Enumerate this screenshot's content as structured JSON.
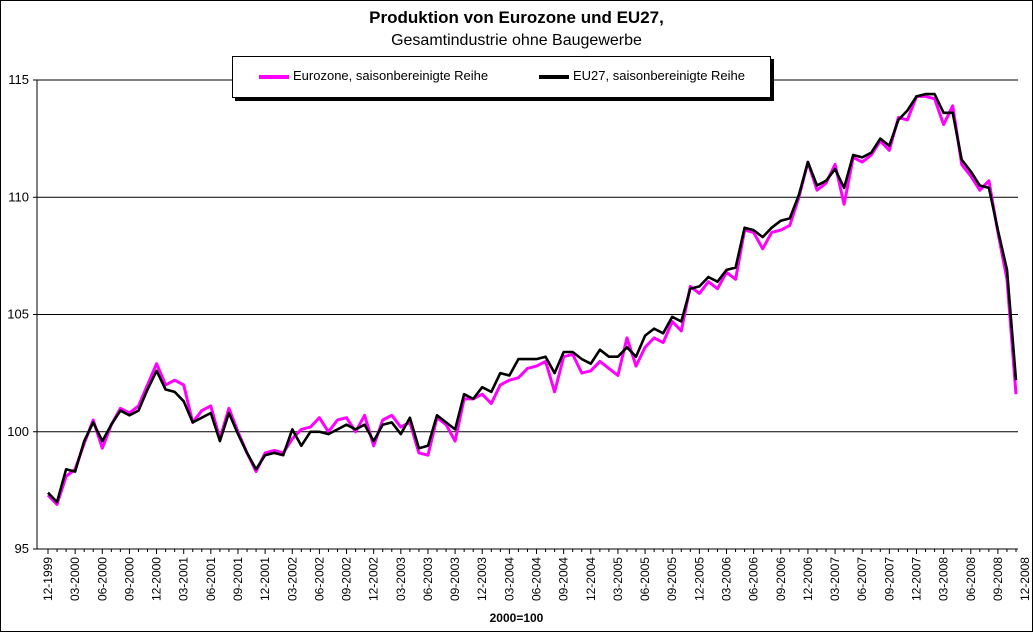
{
  "title": "Produktion von Eurozone und EU27,",
  "subtitle": "Gesamtindustrie ohne Baugewerbe",
  "x_note": "2000=100",
  "chart_data": {
    "type": "line",
    "title": "Produktion von Eurozone und EU27,",
    "subtitle": "Gesamtindustrie ohne Baugewerbe",
    "xlabel": "2000=100",
    "ylabel": "",
    "ylim": [
      95,
      115
    ],
    "yticks": [
      95,
      100,
      105,
      110,
      115
    ],
    "grid": "horizontal",
    "legend_position": "top",
    "x_tick_labels": [
      "12-1999",
      "03-2000",
      "06-2000",
      "09-2000",
      "12-2000",
      "03-2001",
      "06-2001",
      "09-2001",
      "12-2001",
      "03-2002",
      "06-2002",
      "09-2002",
      "12-2002",
      "03-2003",
      "06-2003",
      "09-2003",
      "12-2003",
      "03-2004",
      "06-2004",
      "09-2004",
      "12-2004",
      "03-2005",
      "06-2005",
      "09-2005",
      "12-2005",
      "03-2006",
      "06-2006",
      "09-2006",
      "12-2006",
      "03-2007",
      "06-2007",
      "09-2007",
      "12-2007",
      "03-2008",
      "06-2008",
      "09-2008",
      "12-2008"
    ],
    "series": [
      {
        "name": "Eurozone, saisonbereinigte Reihe",
        "color": "#ff00ff",
        "values": [
          97.3,
          96.9,
          98.1,
          98.4,
          99.5,
          100.5,
          99.3,
          100.3,
          101.0,
          100.8,
          101.1,
          102.0,
          102.9,
          102.0,
          102.2,
          102.0,
          100.4,
          100.9,
          101.1,
          99.7,
          101.0,
          100.0,
          99.1,
          98.3,
          99.1,
          99.2,
          99.1,
          99.7,
          100.1,
          100.2,
          100.6,
          100.0,
          100.5,
          100.6,
          100.0,
          100.7,
          99.4,
          100.5,
          100.7,
          100.2,
          100.4,
          99.1,
          99.0,
          100.6,
          100.3,
          99.6,
          101.4,
          101.4,
          101.6,
          101.2,
          102.0,
          102.2,
          102.3,
          102.7,
          102.8,
          103.0,
          101.7,
          103.2,
          103.3,
          102.5,
          102.6,
          103.0,
          102.7,
          102.4,
          104.0,
          102.8,
          103.6,
          104.0,
          103.8,
          104.7,
          104.3,
          106.2,
          105.9,
          106.4,
          106.1,
          106.8,
          106.5,
          108.6,
          108.5,
          107.8,
          108.5,
          108.6,
          108.8,
          110.0,
          111.5,
          110.3,
          110.6,
          111.4,
          109.7,
          111.7,
          111.5,
          111.8,
          112.4,
          112.0,
          113.4,
          113.3,
          114.3,
          114.3,
          114.2,
          113.1,
          113.9,
          111.4,
          110.9,
          110.3,
          110.7,
          108.5,
          106.5,
          101.6
        ]
      },
      {
        "name": "EU27, saisonbereinigte Reihe",
        "color": "#000000",
        "values": [
          97.4,
          97.0,
          98.4,
          98.3,
          99.6,
          100.4,
          99.6,
          100.3,
          100.9,
          100.7,
          100.9,
          101.8,
          102.6,
          101.8,
          101.7,
          101.3,
          100.4,
          100.6,
          100.8,
          99.6,
          100.8,
          99.9,
          99.1,
          98.4,
          99.0,
          99.1,
          99.0,
          100.1,
          99.4,
          100.0,
          100.0,
          99.9,
          100.1,
          100.3,
          100.1,
          100.3,
          99.6,
          100.3,
          100.4,
          99.9,
          100.6,
          99.3,
          99.4,
          100.7,
          100.4,
          100.1,
          101.6,
          101.4,
          101.9,
          101.7,
          102.5,
          102.4,
          103.1,
          103.1,
          103.1,
          103.2,
          102.5,
          103.4,
          103.4,
          103.1,
          102.9,
          103.5,
          103.2,
          103.2,
          103.6,
          103.2,
          104.1,
          104.4,
          104.2,
          104.9,
          104.7,
          106.1,
          106.2,
          106.6,
          106.4,
          106.9,
          107.0,
          108.7,
          108.6,
          108.3,
          108.7,
          109.0,
          109.1,
          110.1,
          111.5,
          110.5,
          110.7,
          111.2,
          110.4,
          111.8,
          111.7,
          111.9,
          112.5,
          112.2,
          113.3,
          113.7,
          114.3,
          114.4,
          114.4,
          113.6,
          113.6,
          111.6,
          111.1,
          110.5,
          110.4,
          108.6,
          106.9,
          102.2
        ]
      }
    ]
  }
}
